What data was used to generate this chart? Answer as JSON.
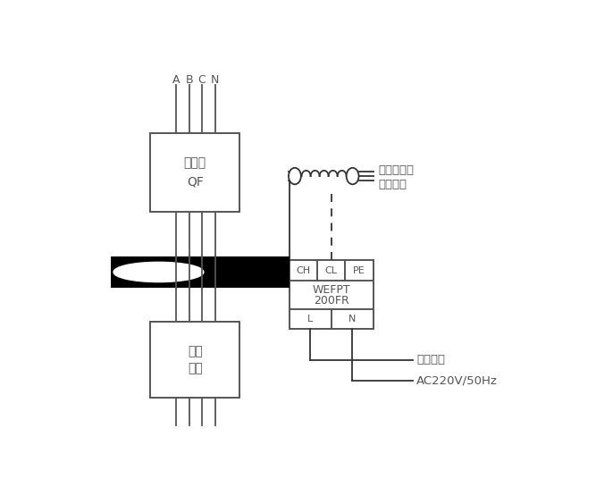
{
  "bg_color": "#ffffff",
  "line_color": "#555555",
  "black_color": "#000000",
  "wire_color": "#333333",
  "figsize": [
    6.67,
    5.64
  ],
  "dpi": 100,
  "labels": {
    "abcn": [
      "A",
      "B",
      "C",
      "N"
    ],
    "breaker_line1": "断路器",
    "breaker_line2": "QF",
    "load_line1": "用电",
    "load_line2": "设备",
    "ch": "CH",
    "cl": "CL",
    "pe": "PE",
    "device_line1": "WEFPT",
    "device_line2": "200FR",
    "l": "L",
    "n_term": "N",
    "monitor1": "至电气火灾",
    "monitor2": "监控主机",
    "power1": "工作电源",
    "power2": "AC220V/50Hz"
  }
}
